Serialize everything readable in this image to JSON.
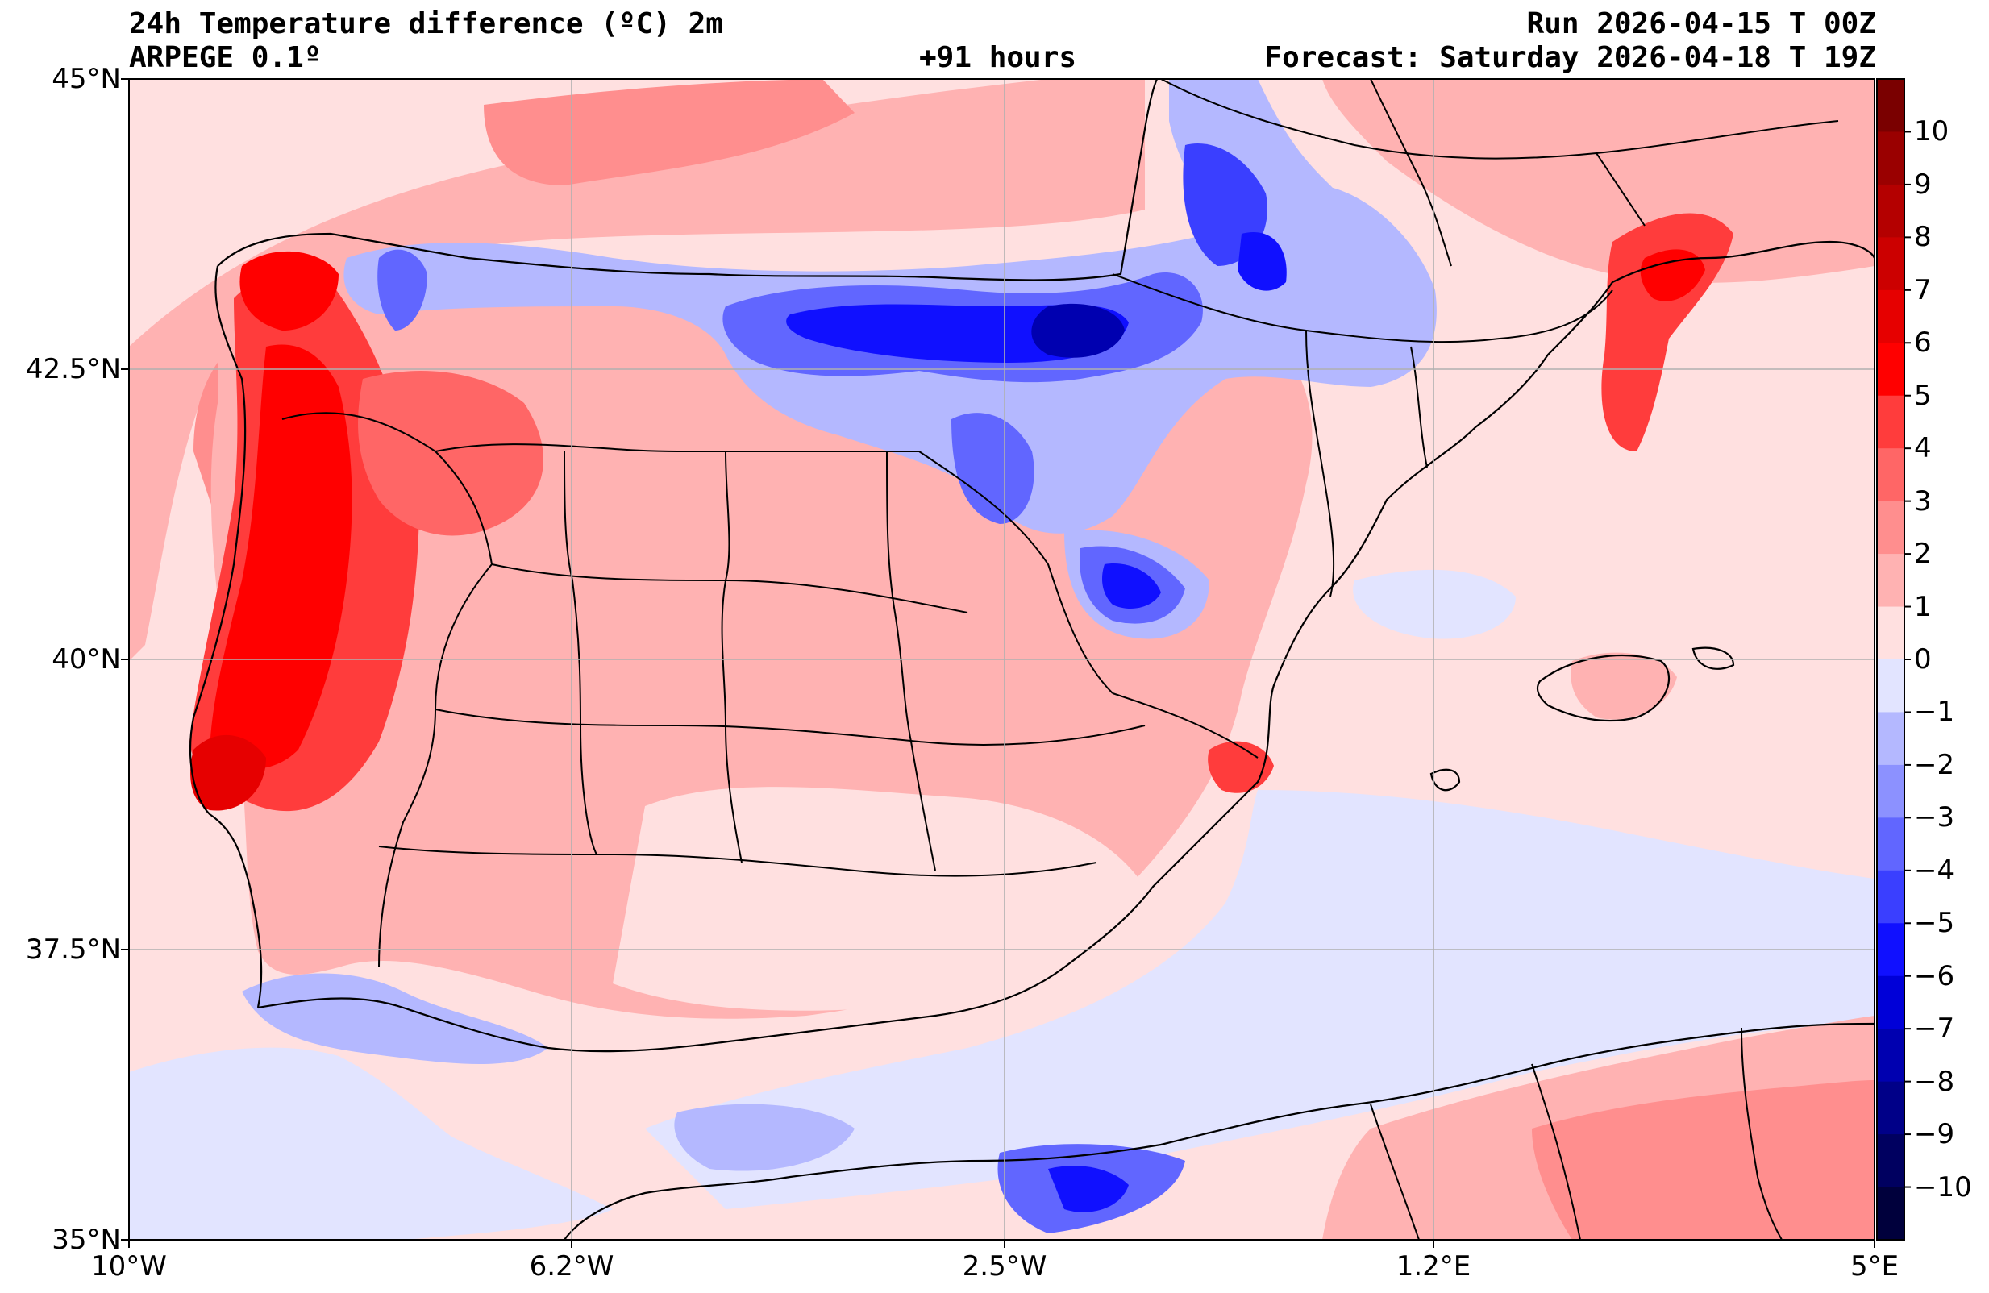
{
  "header": {
    "title": "24h Temperature difference (ºC) 2m",
    "model": "ARPEGE 0.1º",
    "lead": "+91 hours",
    "run": "Run 2026-04-15 T 00Z",
    "forecast": "Forecast: Saturday 2026-04-18 T 19Z"
  },
  "axes": {
    "lat_labels": [
      "45°N",
      "42.5°N",
      "40°N",
      "37.5°N",
      "35°N"
    ],
    "lon_labels": [
      "10°W",
      "6.2°W",
      "2.5°W",
      "1.2°E",
      "5°E"
    ]
  },
  "colorbar": {
    "labels": [
      "10",
      "9",
      "8",
      "7",
      "6",
      "5",
      "4",
      "3",
      "2",
      "1",
      "0",
      "−1",
      "−2",
      "−3",
      "−4",
      "−5",
      "−6",
      "−7",
      "−8",
      "−9",
      "−10"
    ],
    "colors": [
      "#7a0000",
      "#9a0000",
      "#b40000",
      "#cc0000",
      "#e60000",
      "#ff0000",
      "#ff3c3c",
      "#ff6666",
      "#ff8e8e",
      "#ffb2b2",
      "#ffe0e0",
      "#e2e4ff",
      "#b4b8ff",
      "#8c91ff",
      "#6166ff",
      "#3a3fff",
      "#1010ff",
      "#0000d8",
      "#0000b0",
      "#000088",
      "#000060",
      "#00003c"
    ]
  },
  "map": {
    "sea_color": "#ffe0e0",
    "grid_color": "#b0b0b0",
    "border_color": "#000000"
  }
}
